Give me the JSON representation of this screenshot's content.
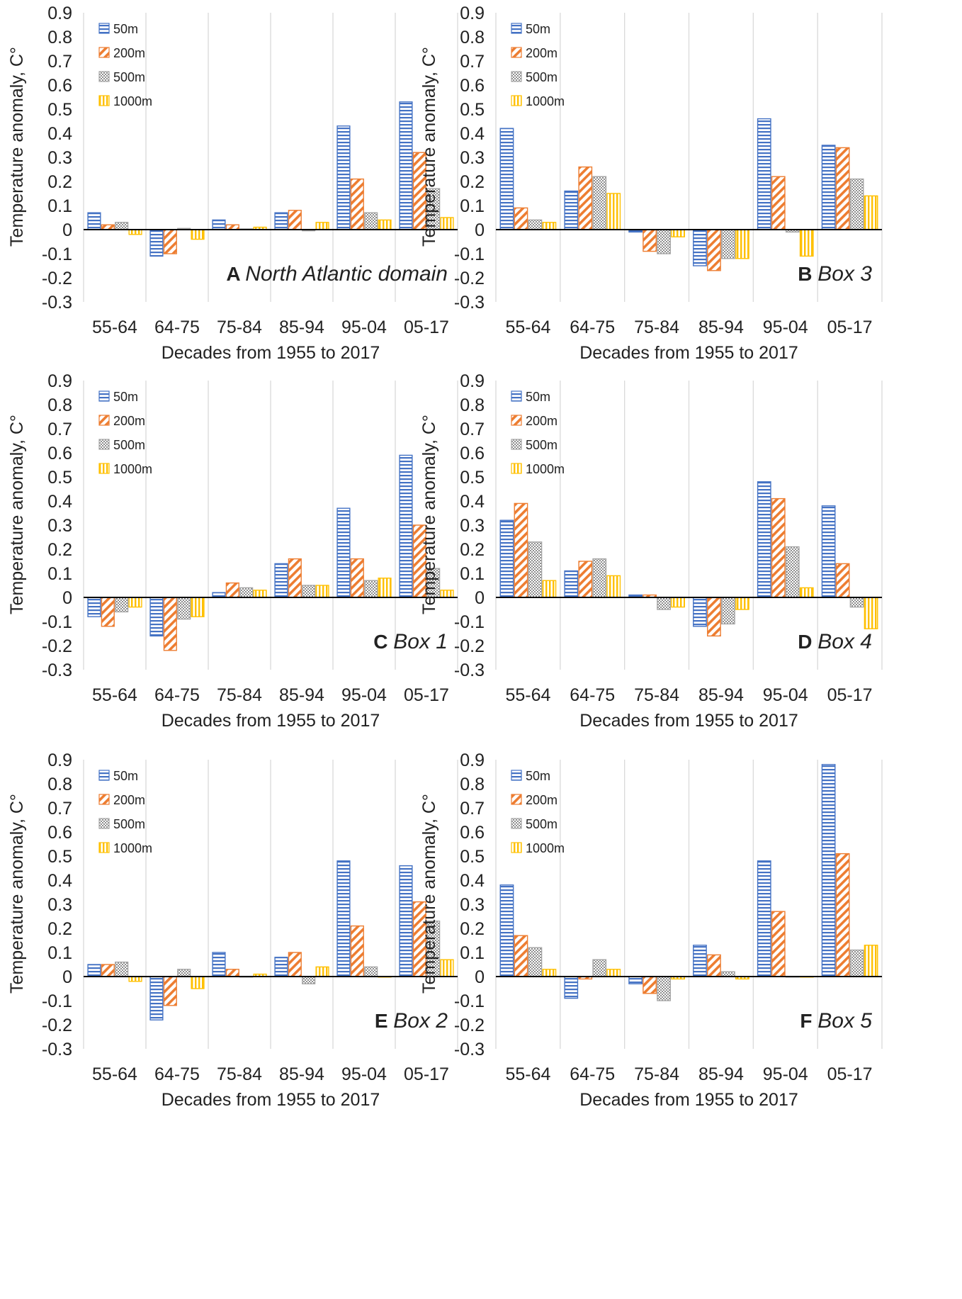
{
  "series_styles": [
    {
      "name": "50m",
      "color": "#4472C4",
      "pattern": "horiz"
    },
    {
      "name": "200m",
      "color": "#ED7D31",
      "pattern": "diag"
    },
    {
      "name": "500m",
      "color": "#A5A5A5",
      "pattern": "dots"
    },
    {
      "name": "1000m",
      "color": "#FFC000",
      "pattern": "vert"
    }
  ],
  "chart_data": [
    {
      "type": "bar",
      "panel_letter": "A",
      "panel_name": "North Atlantic domain",
      "categories": [
        "55-64",
        "64-75",
        "75-84",
        "85-94",
        "95-04",
        "05-17"
      ],
      "series": [
        {
          "name": "50m",
          "values": [
            0.07,
            -0.11,
            0.04,
            0.07,
            0.43,
            0.53
          ]
        },
        {
          "name": "200m",
          "values": [
            0.02,
            -0.1,
            0.02,
            0.08,
            0.21,
            0.32
          ]
        },
        {
          "name": "500m",
          "values": [
            0.03,
            0.005,
            0.003,
            -0.005,
            0.07,
            0.17
          ]
        },
        {
          "name": "1000m",
          "values": [
            -0.02,
            -0.04,
            0.01,
            0.03,
            0.04,
            0.05
          ]
        }
      ],
      "xlabel": "Decades from 1955 to 2017",
      "ylabel": "Temperature anomaly, C°",
      "ylim": [
        -0.3,
        0.9
      ],
      "yticks": [
        "0.9",
        "0.8",
        "0.7",
        "0.6",
        "0.5",
        "0.4",
        "0.3",
        "0.2",
        "0.1",
        "0",
        "-0.1",
        "-0.2",
        "-0.3"
      ],
      "legend": "top-left",
      "grid": true
    },
    {
      "type": "bar",
      "panel_letter": "B",
      "panel_name": "Box 3",
      "categories": [
        "55-64",
        "64-75",
        "75-84",
        "85-94",
        "95-04",
        "05-17"
      ],
      "series": [
        {
          "name": "50m",
          "values": [
            0.42,
            0.16,
            -0.01,
            -0.15,
            0.46,
            0.35
          ]
        },
        {
          "name": "200m",
          "values": [
            0.09,
            0.26,
            -0.09,
            -0.17,
            0.22,
            0.34
          ]
        },
        {
          "name": "500m",
          "values": [
            0.04,
            0.22,
            -0.1,
            -0.12,
            -0.01,
            0.21
          ]
        },
        {
          "name": "1000m",
          "values": [
            0.03,
            0.15,
            -0.03,
            -0.12,
            -0.11,
            0.14
          ]
        }
      ],
      "xlabel": "Decades from 1955 to 2017",
      "ylabel": "Temperature anomaly, C°",
      "ylim": [
        -0.3,
        0.9
      ],
      "yticks": [
        "0.9",
        "0.8",
        "0.7",
        "0.6",
        "0.5",
        "0.4",
        "0.3",
        "0.2",
        "0.1",
        "0",
        "-0.1",
        "-0.2",
        "-0.3"
      ],
      "legend": "top-left",
      "grid": true
    },
    {
      "type": "bar",
      "panel_letter": "C",
      "panel_name": "Box 1",
      "categories": [
        "55-64",
        "64-75",
        "75-84",
        "85-94",
        "95-04",
        "05-17"
      ],
      "series": [
        {
          "name": "50m",
          "values": [
            -0.08,
            -0.16,
            0.02,
            0.14,
            0.37,
            0.59
          ]
        },
        {
          "name": "200m",
          "values": [
            -0.12,
            -0.22,
            0.06,
            0.16,
            0.16,
            0.3
          ]
        },
        {
          "name": "500m",
          "values": [
            -0.06,
            -0.09,
            0.04,
            0.05,
            0.07,
            0.12
          ]
        },
        {
          "name": "1000m",
          "values": [
            -0.04,
            -0.08,
            0.03,
            0.05,
            0.08,
            0.03
          ]
        }
      ],
      "xlabel": "Decades from 1955 to 2017",
      "ylabel": "Temperature anomaly, C°",
      "ylim": [
        -0.3,
        0.9
      ],
      "yticks": [
        "0.9",
        "0.8",
        "0.7",
        "0.6",
        "0.5",
        "0.4",
        "0.3",
        "0.2",
        "0.1",
        "0",
        "-0.1",
        "-0.2",
        "-0.3"
      ],
      "legend": "top-left",
      "grid": true
    },
    {
      "type": "bar",
      "panel_letter": "D",
      "panel_name": "Box 4",
      "categories": [
        "55-64",
        "64-75",
        "75-84",
        "85-94",
        "95-04",
        "05-17"
      ],
      "series": [
        {
          "name": "50m",
          "values": [
            0.32,
            0.11,
            0.01,
            -0.12,
            0.48,
            0.38
          ]
        },
        {
          "name": "200m",
          "values": [
            0.39,
            0.15,
            0.01,
            -0.16,
            0.41,
            0.14
          ]
        },
        {
          "name": "500m",
          "values": [
            0.23,
            0.16,
            -0.05,
            -0.11,
            0.21,
            -0.04
          ]
        },
        {
          "name": "1000m",
          "values": [
            0.07,
            0.09,
            -0.04,
            -0.05,
            0.04,
            -0.13
          ]
        }
      ],
      "xlabel": "Decades from 1955 to 2017",
      "ylabel": "Temperature anomaly, C°",
      "ylim": [
        -0.3,
        0.9
      ],
      "yticks": [
        "0.9",
        "0.8",
        "0.7",
        "0.6",
        "0.5",
        "0.4",
        "0.3",
        "0.2",
        "0.1",
        "0",
        "-0.1",
        "-0.2",
        "-0.3"
      ],
      "legend": "top-left",
      "grid": true
    },
    {
      "type": "bar",
      "panel_letter": "E",
      "panel_name": "Box 2",
      "categories": [
        "55-64",
        "64-75",
        "75-84",
        "85-94",
        "95-04",
        "05-17"
      ],
      "series": [
        {
          "name": "50m",
          "values": [
            0.05,
            -0.18,
            0.1,
            0.08,
            0.48,
            0.46
          ]
        },
        {
          "name": "200m",
          "values": [
            0.05,
            -0.12,
            0.03,
            0.1,
            0.21,
            0.31
          ]
        },
        {
          "name": "500m",
          "values": [
            0.06,
            0.03,
            0.0,
            -0.03,
            0.04,
            0.23
          ]
        },
        {
          "name": "1000m",
          "values": [
            -0.02,
            -0.05,
            0.01,
            0.04,
            0.0,
            0.07
          ]
        }
      ],
      "xlabel": "Decades from 1955 to 2017",
      "ylabel": "Temperature anomaly, C°",
      "ylim": [
        -0.3,
        0.9
      ],
      "yticks": [
        "0.9",
        "0.8",
        "0.7",
        "0.6",
        "0.5",
        "0.4",
        "0.3",
        "0.2",
        "0.1",
        "0",
        "-0.1",
        "-0.2",
        "-0.3"
      ],
      "legend": "top-left",
      "grid": true
    },
    {
      "type": "bar",
      "panel_letter": "F",
      "panel_name": "Box 5",
      "categories": [
        "55-64",
        "64-75",
        "75-84",
        "85-94",
        "95-04",
        "05-17"
      ],
      "series": [
        {
          "name": "50m",
          "values": [
            0.38,
            -0.09,
            -0.03,
            0.13,
            0.48,
            0.88
          ]
        },
        {
          "name": "200m",
          "values": [
            0.17,
            -0.01,
            -0.07,
            0.09,
            0.27,
            0.51
          ]
        },
        {
          "name": "500m",
          "values": [
            0.12,
            0.07,
            -0.1,
            0.02,
            0.0,
            0.11
          ]
        },
        {
          "name": "1000m",
          "values": [
            0.03,
            0.03,
            -0.01,
            -0.01,
            0.0,
            0.13
          ]
        }
      ],
      "xlabel": "Decades from 1955 to 2017",
      "ylabel": "Temperature anomaly, C°",
      "ylim": [
        -0.3,
        0.9
      ],
      "yticks": [
        "0.9",
        "0.8",
        "0.7",
        "0.6",
        "0.5",
        "0.4",
        "0.3",
        "0.2",
        "0.1",
        "0",
        "-0.1",
        "-0.2",
        "-0.3"
      ],
      "legend": "top-left",
      "grid": true
    }
  ]
}
